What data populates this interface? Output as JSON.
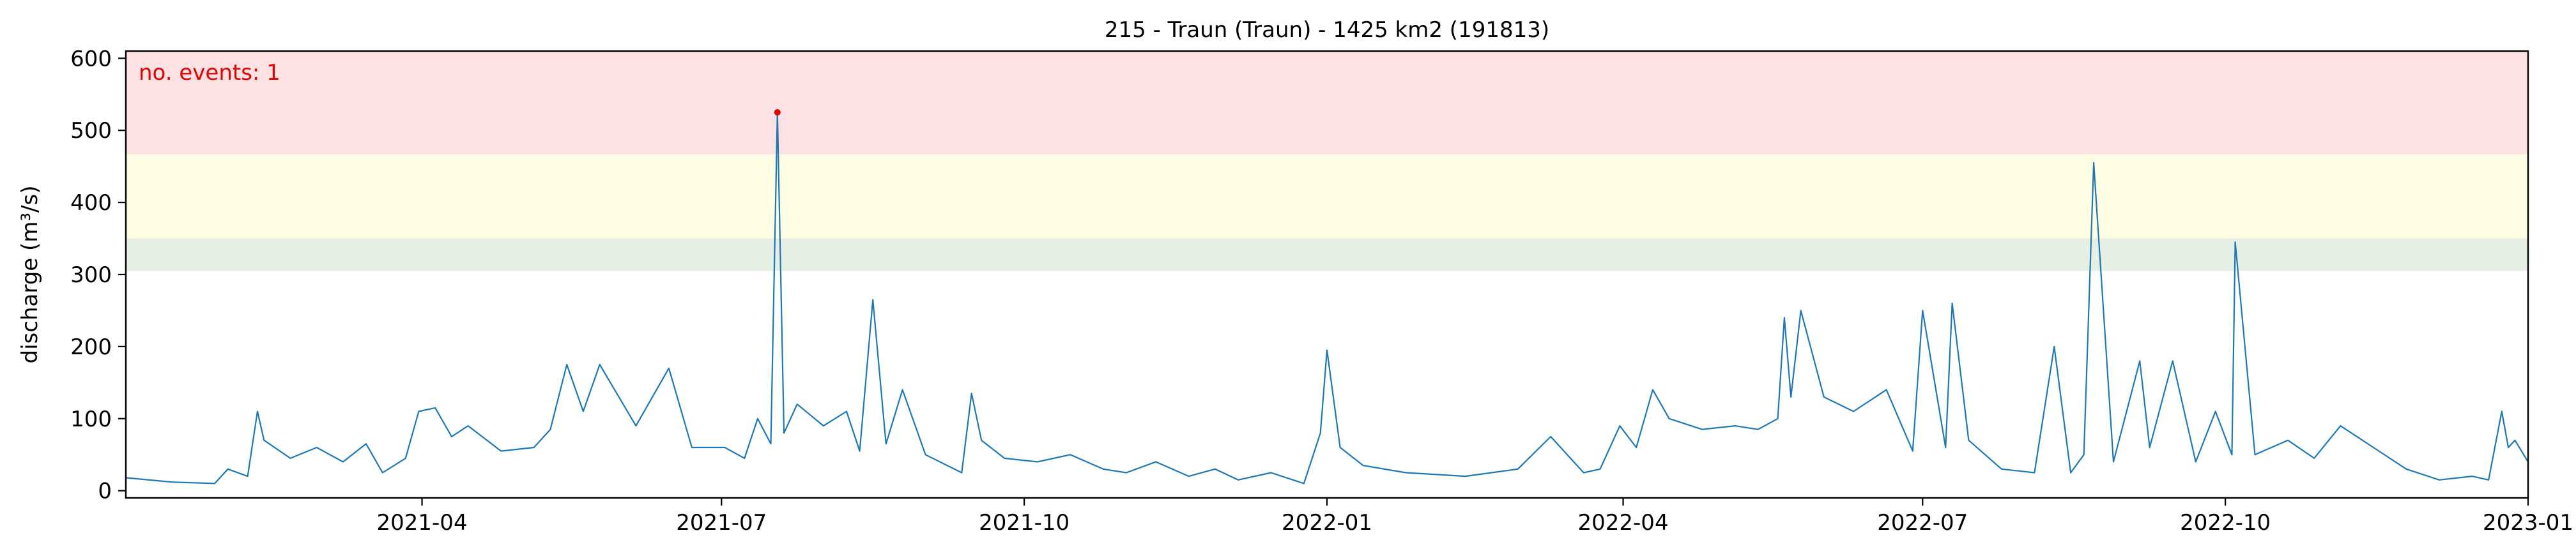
{
  "chart_data": {
    "type": "line",
    "title": "215 - Traun (Traun) - 1425 km2 (191813)",
    "xlabel": "",
    "ylabel": "discharge (m³/s)",
    "xlim": [
      "2021-01-01",
      "2023-01-01"
    ],
    "ylim": [
      -10,
      610
    ],
    "x_ticks": [
      "2021-04-01",
      "2021-07-01",
      "2021-10-01",
      "2022-01-01",
      "2022-04-01",
      "2022-07-01",
      "2022-10-01",
      "2023-01-01"
    ],
    "x_tick_labels": [
      "2021-04",
      "2021-07",
      "2021-10",
      "2022-01",
      "2022-04",
      "2022-07",
      "2022-10",
      "2023-01"
    ],
    "y_ticks": [
      0,
      100,
      200,
      300,
      400,
      500,
      600
    ],
    "y_tick_labels": [
      "0",
      "100",
      "200",
      "300",
      "400",
      "500",
      "600"
    ],
    "grid": false,
    "line_color": "#1f77b4",
    "threshold_bands": [
      {
        "from": 305,
        "to": 350,
        "color": "#e5efe3"
      },
      {
        "from": 350,
        "to": 467,
        "color": "#fefde3"
      },
      {
        "from": 467,
        "to": 610,
        "color": "#fee1e3"
      }
    ],
    "annotation": {
      "text": "no. events: 1",
      "color": "#e00000"
    },
    "events": [
      {
        "x": "2021-07-18",
        "y": 525,
        "color": "#e00000"
      }
    ],
    "series": [
      {
        "x": [
          "2021-01-01",
          "2021-01-15",
          "2021-01-28",
          "2021-02-01",
          "2021-02-07",
          "2021-02-10",
          "2021-02-12",
          "2021-02-20",
          "2021-02-28",
          "2021-03-08",
          "2021-03-15",
          "2021-03-20",
          "2021-03-27",
          "2021-03-31",
          "2021-04-05",
          "2021-04-10",
          "2021-04-15",
          "2021-04-25",
          "2021-05-05",
          "2021-05-10",
          "2021-05-15",
          "2021-05-20",
          "2021-05-25",
          "2021-06-05",
          "2021-06-15",
          "2021-06-22",
          "2021-07-02",
          "2021-07-08",
          "2021-07-12",
          "2021-07-16",
          "2021-07-18",
          "2021-07-20",
          "2021-07-24",
          "2021-08-01",
          "2021-08-08",
          "2021-08-12",
          "2021-08-16",
          "2021-08-20",
          "2021-08-25",
          "2021-09-01",
          "2021-09-12",
          "2021-09-15",
          "2021-09-18",
          "2021-09-25",
          "2021-10-05",
          "2021-10-15",
          "2021-10-25",
          "2021-11-01",
          "2021-11-10",
          "2021-11-20",
          "2021-11-28",
          "2021-12-05",
          "2021-12-15",
          "2021-12-25",
          "2021-12-30",
          "2022-01-01",
          "2022-01-05",
          "2022-01-12",
          "2022-01-25",
          "2022-02-05",
          "2022-02-12",
          "2022-02-20",
          "2022-02-28",
          "2022-03-10",
          "2022-03-20",
          "2022-03-25",
          "2022-03-31",
          "2022-04-05",
          "2022-04-10",
          "2022-04-15",
          "2022-04-25",
          "2022-05-05",
          "2022-05-12",
          "2022-05-18",
          "2022-05-20",
          "2022-05-22",
          "2022-05-25",
          "2022-06-01",
          "2022-06-10",
          "2022-06-20",
          "2022-06-28",
          "2022-07-01",
          "2022-07-08",
          "2022-07-10",
          "2022-07-15",
          "2022-07-25",
          "2022-08-04",
          "2022-08-10",
          "2022-08-15",
          "2022-08-19",
          "2022-08-22",
          "2022-08-28",
          "2022-09-05",
          "2022-09-08",
          "2022-09-15",
          "2022-09-22",
          "2022-09-28",
          "2022-10-03",
          "2022-10-04",
          "2022-10-10",
          "2022-10-20",
          "2022-10-28",
          "2022-11-05",
          "2022-11-15",
          "2022-11-25",
          "2022-12-05",
          "2022-12-15",
          "2022-12-20",
          "2022-12-24",
          "2022-12-26",
          "2022-12-28",
          "2023-01-01"
        ],
        "values": [
          18,
          12,
          10,
          30,
          20,
          110,
          70,
          45,
          60,
          40,
          65,
          25,
          45,
          110,
          115,
          75,
          90,
          55,
          60,
          85,
          175,
          110,
          175,
          90,
          170,
          60,
          60,
          45,
          100,
          65,
          525,
          80,
          120,
          90,
          110,
          55,
          265,
          65,
          140,
          50,
          25,
          135,
          70,
          45,
          40,
          50,
          30,
          25,
          40,
          20,
          30,
          15,
          25,
          10,
          80,
          195,
          60,
          35,
          25,
          22,
          20,
          25,
          30,
          75,
          25,
          30,
          90,
          60,
          140,
          100,
          85,
          90,
          85,
          100,
          240,
          130,
          250,
          130,
          110,
          140,
          55,
          250,
          60,
          260,
          70,
          30,
          25,
          200,
          25,
          50,
          455,
          40,
          180,
          60,
          180,
          40,
          110,
          50,
          345,
          50,
          70,
          45,
          90,
          60,
          30,
          15,
          20,
          15,
          110,
          60,
          70,
          40
        ]
      }
    ]
  }
}
